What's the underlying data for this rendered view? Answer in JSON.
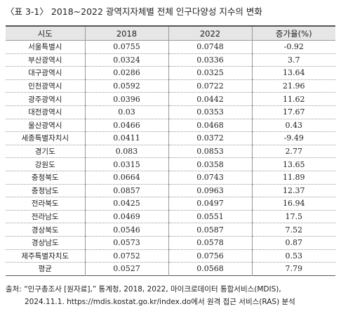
{
  "title": "〈표 3-1〉 2018~2022 광역지자체별 전체 인구다양성 지수의 변화",
  "table": {
    "headers": [
      "시도",
      "2018",
      "2022",
      "증가율(%)"
    ],
    "rows": [
      [
        "서울특별시",
        "0.0755",
        "0.0748",
        "-0.92"
      ],
      [
        "부산광역시",
        "0.0324",
        "0.0336",
        "3.7"
      ],
      [
        "대구광역시",
        "0.0286",
        "0.0325",
        "13.64"
      ],
      [
        "인천광역시",
        "0.0592",
        "0.0722",
        "21.96"
      ],
      [
        "광주광역시",
        "0.0396",
        "0.0442",
        "11.62"
      ],
      [
        "대전광역시",
        "0.03",
        "0.0353",
        "17.67"
      ],
      [
        "울산광역시",
        "0.0466",
        "0.0468",
        "0.43"
      ],
      [
        "세종특별자치시",
        "0.0411",
        "0.0372",
        "-9.49"
      ],
      [
        "경기도",
        "0.083",
        "0.0853",
        "2.77"
      ],
      [
        "강원도",
        "0.0315",
        "0.0358",
        "13.65"
      ],
      [
        "충청북도",
        "0.0664",
        "0.0743",
        "11.89"
      ],
      [
        "충청남도",
        "0.0857",
        "0.0963",
        "12.37"
      ],
      [
        "전라북도",
        "0.0425",
        "0.0497",
        "16.94"
      ],
      [
        "전라남도",
        "0.0469",
        "0.0551",
        "17.5"
      ],
      [
        "경상북도",
        "0.0546",
        "0.0587",
        "7.52"
      ],
      [
        "경상남도",
        "0.0573",
        "0.0578",
        "0.87"
      ],
      [
        "제주특별자치도",
        "0.0752",
        "0.0756",
        "0.53"
      ],
      [
        "평균",
        "0.0527",
        "0.0568",
        "7.79"
      ]
    ]
  },
  "source": {
    "line1": "출처: “인구총조사 [원자료],” 통계청, 2018, 2022, 마이크로데이터 통합서비스(MDIS),",
    "line2": "2024.11.1. https://mdis.kostat.go.kr/index.do에서 원격 접근 서비스(RAS) 분석"
  }
}
